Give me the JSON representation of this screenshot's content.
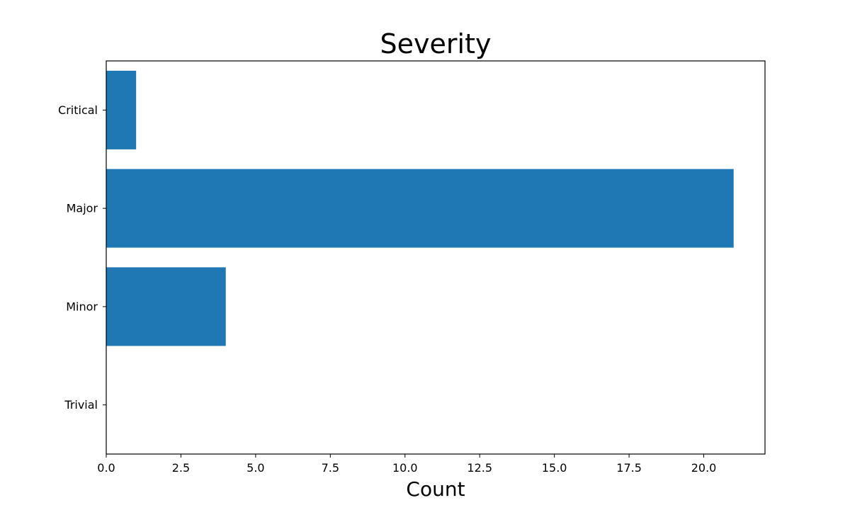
{
  "chart_data": {
    "type": "bar",
    "orientation": "horizontal",
    "title": "Severity",
    "xlabel": "Count",
    "ylabel": "",
    "categories": [
      "Critical",
      "Major",
      "Minor",
      "Trivial"
    ],
    "values": [
      1,
      21,
      4,
      0
    ],
    "xlim": [
      0,
      22.05
    ],
    "xticks": [
      0,
      2.5,
      5,
      7.5,
      10,
      12.5,
      15,
      17.5,
      20
    ],
    "xtick_labels": [
      "0.0",
      "2.5",
      "5.0",
      "7.5",
      "10.0",
      "12.5",
      "15.0",
      "17.5",
      "20.0"
    ],
    "grid": false,
    "legend": "none",
    "bar_color": "#1f77b4"
  }
}
